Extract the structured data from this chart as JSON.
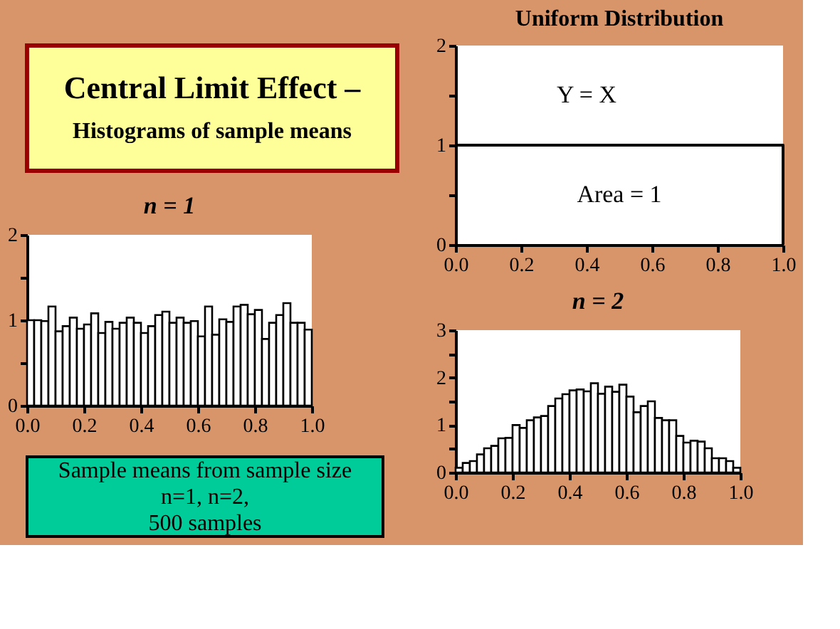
{
  "chart_data": [
    {
      "type": "other",
      "title": "Central Limit Effect –",
      "subtitle": "Histograms of sample means",
      "annotations": [
        "Sample means from sample size",
        "n=1, n=2,",
        "500 samples"
      ]
    },
    {
      "type": "step",
      "title": "Uniform Distribution",
      "x": [
        0,
        1
      ],
      "values": [
        1,
        0
      ],
      "color": "#000000",
      "xlim": [
        0,
        1
      ],
      "ylim": [
        0,
        2
      ],
      "xticks": [
        {
          "value": 0,
          "label": "0.0"
        },
        {
          "value": 0.2,
          "label": "0.2"
        },
        {
          "value": 0.4,
          "label": "0.4"
        },
        {
          "value": 0.6,
          "label": "0.6"
        },
        {
          "value": 0.8,
          "label": "0.8"
        },
        {
          "value": 1,
          "label": "1.0"
        }
      ],
      "yticks": [
        0,
        {
          "value": 0.5,
          "label": null
        },
        1,
        {
          "value": 1.5,
          "label": null
        },
        2
      ],
      "grid": false,
      "annotations": [
        "Y = X",
        "Area = 1"
      ]
    },
    {
      "type": "histogram",
      "title": "n = 1",
      "color": "#ffffff",
      "bins": [
        0,
        0.025,
        0.05,
        0.075,
        0.1,
        0.125,
        0.15,
        0.175,
        0.2,
        0.225,
        0.25,
        0.275,
        0.3,
        0.325,
        0.35,
        0.375,
        0.4,
        0.425,
        0.45,
        0.475,
        0.5,
        0.525,
        0.55,
        0.575,
        0.6,
        0.625,
        0.65,
        0.675,
        0.7,
        0.725,
        0.75,
        0.775,
        0.8,
        0.825,
        0.85,
        0.875,
        0.9,
        0.925,
        0.95,
        0.975,
        1
      ],
      "values": [
        1.0,
        1.0,
        0.99,
        1.16,
        0.87,
        0.93,
        1.03,
        0.9,
        0.95,
        1.08,
        0.85,
        0.98,
        0.9,
        0.97,
        1.03,
        0.97,
        0.85,
        0.93,
        1.06,
        1.1,
        0.97,
        1.03,
        0.97,
        0.99,
        0.81,
        1.16,
        0.83,
        1.01,
        0.98,
        1.16,
        1.18,
        1.07,
        1.12,
        0.78,
        0.97,
        1.06,
        1.2,
        0.97,
        0.97,
        0.89
      ],
      "xlim": [
        0,
        1
      ],
      "ylim": [
        0,
        2
      ],
      "xticks": [
        {
          "value": 0,
          "label": "0.0"
        },
        {
          "value": 0.2,
          "label": "0.2"
        },
        {
          "value": 0.4,
          "label": "0.4"
        },
        {
          "value": 0.6,
          "label": "0.6"
        },
        {
          "value": 0.8,
          "label": "0.8"
        },
        {
          "value": 1,
          "label": "1.0"
        }
      ],
      "yticks": [
        0,
        {
          "value": 0.5,
          "label": null
        },
        1,
        {
          "value": 1.5,
          "label": null
        },
        2
      ],
      "grid": false
    },
    {
      "type": "histogram",
      "title": "n = 2",
      "color": "#ffffff",
      "bins": [
        0,
        0.025,
        0.05,
        0.075,
        0.1,
        0.125,
        0.15,
        0.175,
        0.2,
        0.225,
        0.25,
        0.275,
        0.3,
        0.325,
        0.35,
        0.375,
        0.4,
        0.425,
        0.45,
        0.475,
        0.5,
        0.525,
        0.55,
        0.575,
        0.6,
        0.625,
        0.65,
        0.675,
        0.7,
        0.725,
        0.75,
        0.775,
        0.8,
        0.825,
        0.85,
        0.875,
        0.9,
        0.925,
        0.95,
        0.975,
        1
      ],
      "values": [
        0.1,
        0.2,
        0.24,
        0.38,
        0.51,
        0.56,
        0.72,
        0.73,
        1.0,
        0.94,
        1.1,
        1.16,
        1.19,
        1.4,
        1.56,
        1.65,
        1.73,
        1.75,
        1.71,
        1.88,
        1.66,
        1.81,
        1.7,
        1.85,
        1.6,
        1.27,
        1.4,
        1.5,
        1.15,
        1.1,
        1.1,
        0.77,
        0.63,
        0.67,
        0.65,
        0.51,
        0.3,
        0.3,
        0.24,
        0.1
      ],
      "xlim": [
        0,
        1
      ],
      "ylim": [
        0,
        3
      ],
      "xticks": [
        {
          "value": 0,
          "label": "0.0"
        },
        {
          "value": 0.2,
          "label": "0.2"
        },
        {
          "value": 0.4,
          "label": "0.4"
        },
        {
          "value": 0.6,
          "label": "0.6"
        },
        {
          "value": 0.8,
          "label": "0.8"
        },
        {
          "value": 1,
          "label": "1.0"
        }
      ],
      "yticks": [
        0,
        {
          "value": 0.5,
          "label": null
        },
        1,
        {
          "value": 1.5,
          "label": null
        },
        2,
        {
          "value": 2.5,
          "label": null
        },
        3
      ],
      "grid": false
    }
  ]
}
